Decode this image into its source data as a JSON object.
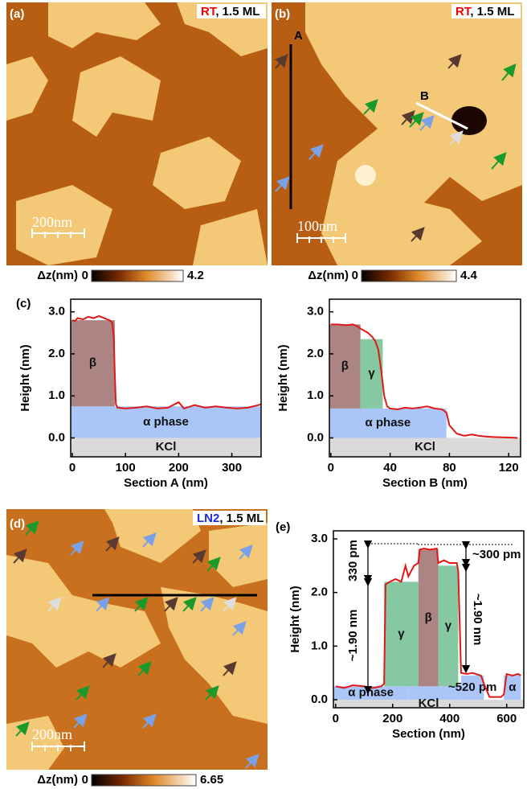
{
  "images": [
    {
      "label": "(a)",
      "condition": "RT",
      "coverage": ", 1.5 ML",
      "scale_bar": "200nm",
      "colorbar": {
        "label": "Δz(nm)",
        "min": 0,
        "max": 4.2
      }
    },
    {
      "label": "(b)",
      "condition": "RT",
      "coverage": ", 1.5 ML",
      "scale_bar": "100nm",
      "lines": [
        "A",
        "B"
      ],
      "colorbar": {
        "label": "Δz(nm)",
        "min": 0,
        "max": 4.4
      }
    },
    {
      "label": "(d)",
      "condition": "LN2",
      "coverage": ", 1.5 ML",
      "scale_bar": "200nm",
      "colorbar": {
        "label": "Δz(nm)",
        "min": 0,
        "max": 6.65
      }
    }
  ],
  "chart_data": [
    {
      "type": "line",
      "panel_label": "(c)",
      "xlabel": "Section A (nm)",
      "ylabel": "Height (nm)",
      "color": "#e01818",
      "x": [
        0,
        5,
        10,
        20,
        30,
        40,
        50,
        60,
        70,
        75,
        78,
        80,
        82,
        85,
        100,
        120,
        140,
        160,
        180,
        200,
        210,
        230,
        250,
        270,
        290,
        310,
        330,
        350,
        355
      ],
      "values": [
        2.8,
        2.78,
        2.85,
        2.82,
        2.88,
        2.85,
        2.9,
        2.85,
        2.8,
        2.75,
        2.4,
        1.5,
        0.8,
        0.72,
        0.7,
        0.72,
        0.75,
        0.7,
        0.72,
        0.85,
        0.7,
        0.78,
        0.72,
        0.75,
        0.72,
        0.7,
        0.72,
        0.78,
        0.8
      ],
      "xlim": [
        -3,
        355
      ],
      "ylim": [
        -0.45,
        3.3
      ],
      "xticks": [
        0,
        100,
        200,
        300
      ],
      "yticks": [
        {
          "value": 0,
          "label": "0.0"
        },
        {
          "value": 1,
          "label": "1.0"
        },
        {
          "value": 2,
          "label": "2.0"
        },
        {
          "value": 3,
          "label": "3.0"
        }
      ],
      "regions": [
        {
          "label": "KCl",
          "x": [
            -3,
            355
          ],
          "y": [
            -0.45,
            0
          ],
          "color": "#dadada"
        },
        {
          "label": "α phase",
          "x": [
            -3,
            355
          ],
          "y": [
            0,
            0.75
          ],
          "color": "#aac6f8"
        },
        {
          "label": "β",
          "x": [
            -3,
            80
          ],
          "y": [
            0.75,
            2.8
          ],
          "color": "#ac8484"
        }
      ]
    },
    {
      "type": "line",
      "xlabel": "Section B (nm)",
      "ylabel": "Height (nm)",
      "color": "#e01818",
      "x": [
        0,
        5,
        10,
        15,
        18,
        20,
        25,
        28,
        30,
        32,
        34,
        36,
        38,
        40,
        45,
        50,
        55,
        60,
        65,
        70,
        75,
        78,
        80,
        85,
        90,
        95,
        100,
        105,
        110,
        120,
        126
      ],
      "values": [
        2.7,
        2.7,
        2.68,
        2.7,
        2.65,
        2.6,
        2.5,
        2.4,
        2.3,
        2.1,
        1.6,
        1.0,
        0.75,
        0.7,
        0.68,
        0.72,
        0.7,
        0.72,
        0.75,
        0.7,
        0.68,
        0.6,
        0.3,
        0.1,
        0.05,
        0.08,
        0.05,
        0.03,
        0.02,
        0.01,
        0.0
      ],
      "xlim": [
        -1,
        128
      ],
      "ylim": [
        -0.45,
        3.3
      ],
      "xticks": [
        0,
        40,
        80,
        120
      ],
      "yticks": [
        {
          "value": 0,
          "label": "0.0"
        },
        {
          "value": 1,
          "label": "1.0"
        },
        {
          "value": 2,
          "label": "2.0"
        },
        {
          "value": 3,
          "label": "3.0"
        }
      ],
      "regions": [
        {
          "label": "KCl",
          "x": [
            -1,
            128
          ],
          "y": [
            -0.45,
            0
          ],
          "color": "#dadada"
        },
        {
          "label": "α phase",
          "x": [
            -1,
            78
          ],
          "y": [
            0,
            0.7
          ],
          "color": "#aac6f8"
        },
        {
          "label": "β",
          "x": [
            -1,
            20
          ],
          "y": [
            0.7,
            2.7
          ],
          "color": "#ac8484"
        },
        {
          "label": "γ",
          "x": [
            20,
            35
          ],
          "y": [
            0.7,
            2.35
          ],
          "color": "#86c8a2"
        }
      ]
    },
    {
      "type": "line",
      "panel_label": "(e)",
      "xlabel": "Section (nm)",
      "ylabel": "Height (nm)",
      "color": "#e01818",
      "x": [
        0,
        30,
        60,
        100,
        130,
        160,
        170,
        175,
        190,
        210,
        230,
        245,
        255,
        275,
        290,
        295,
        310,
        330,
        355,
        360,
        380,
        400,
        425,
        430,
        440,
        460,
        480,
        510,
        520,
        540,
        560,
        580,
        590,
        600,
        620,
        640,
        650
      ],
      "values": [
        0.25,
        0.22,
        0.27,
        0.25,
        0.22,
        0.25,
        0.3,
        2.15,
        2.2,
        2.25,
        2.2,
        2.5,
        2.3,
        2.5,
        2.55,
        2.8,
        2.82,
        2.8,
        2.82,
        2.55,
        2.6,
        2.55,
        2.55,
        2.4,
        0.5,
        0.48,
        0.5,
        0.45,
        0.3,
        0.05,
        0.05,
        0.05,
        0.1,
        0.48,
        0.45,
        0.48,
        0.45
      ],
      "xlim": [
        -8,
        660
      ],
      "ylim": [
        -0.15,
        3.15
      ],
      "xticks": [
        0,
        200,
        400,
        600
      ],
      "yticks": [
        {
          "value": 0,
          "label": "0.0"
        },
        {
          "value": 1,
          "label": "1.0"
        },
        {
          "value": 2,
          "label": "2.0"
        },
        {
          "value": 3,
          "label": "3.0"
        }
      ],
      "regions": [
        {
          "label": "KCl",
          "x": [
            -8,
            660
          ],
          "y": [
            -0.15,
            0
          ],
          "color": "#dadada"
        },
        {
          "label": "α phase",
          "x": [
            -8,
            255
          ],
          "y": [
            0,
            0.25
          ],
          "color": "#aac6f8"
        },
        {
          "x": [
            255,
            440
          ],
          "y": [
            0,
            0.25
          ],
          "color": "#aac6f8"
        },
        {
          "label": "~520 pm",
          "x": [
            440,
            520
          ],
          "y": [
            0,
            0.45
          ],
          "color": "#aac6f8"
        },
        {
          "label": "α",
          "x": [
            590,
            650
          ],
          "y": [
            0,
            0.45
          ],
          "color": "#aac6f8"
        },
        {
          "label": "γ",
          "x": [
            170,
            290
          ],
          "y": [
            0.25,
            2.2
          ],
          "color": "#86c8a2"
        },
        {
          "label": "β",
          "x": [
            290,
            360
          ],
          "y": [
            0.25,
            2.8
          ],
          "color": "#ac8484"
        },
        {
          "label": "γ",
          "x": [
            360,
            430
          ],
          "y": [
            0.25,
            2.5
          ],
          "color": "#86c8a2"
        }
      ],
      "annotations": [
        "330 pm",
        "~1.90 nm",
        "~300 pm",
        "~1.90 nm"
      ]
    }
  ]
}
